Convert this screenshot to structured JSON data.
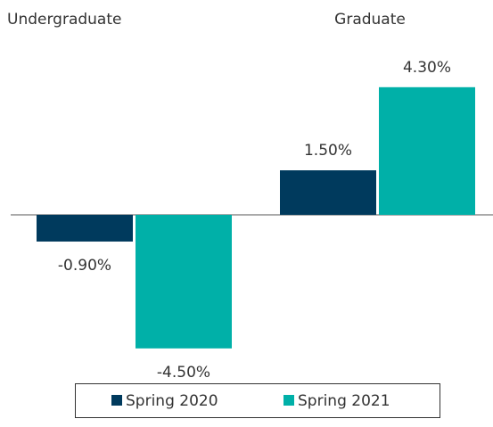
{
  "chart_data": {
    "type": "bar",
    "categories": [
      "Undergraduate",
      "Graduate"
    ],
    "series": [
      {
        "name": "Spring 2020",
        "color": "#003a5d",
        "values": [
          -0.9,
          1.5
        ],
        "value_labels": [
          "-0.90%",
          "1.50%"
        ]
      },
      {
        "name": "Spring 2021",
        "color": "#00b0a8",
        "values": [
          -4.5,
          4.3
        ],
        "value_labels": [
          "-4.50%",
          "4.30%"
        ]
      }
    ],
    "legend": "bottom"
  }
}
